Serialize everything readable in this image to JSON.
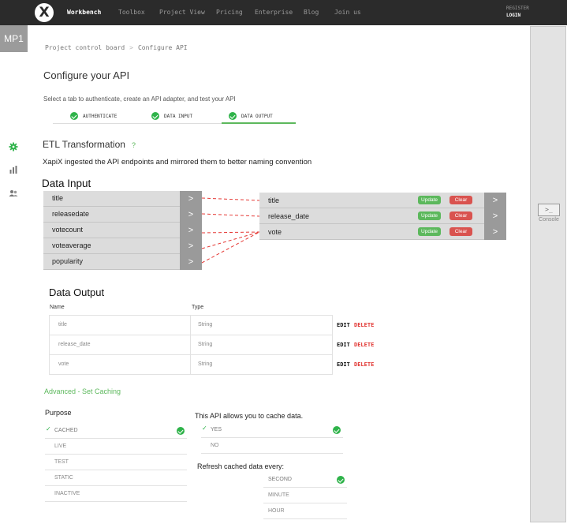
{
  "nav": {
    "logo": "X",
    "items": [
      "Workbench",
      "Toolbox",
      "Project View",
      "Pricing",
      "Enterprise",
      "Blog",
      "Join us"
    ],
    "register": "REGISTER",
    "login": "LOGIN"
  },
  "sidebar": {
    "project_badge": "MP1"
  },
  "breadcrumb": {
    "items": [
      "Project control board",
      "Configure API"
    ],
    "separator": ">"
  },
  "configure": {
    "title": "Configure your API",
    "subtitle": "Select a tab to authenticate, create an API adapter, and test your API",
    "tabs": [
      {
        "label": "AUTHENTICATE"
      },
      {
        "label": "DATA INPUT"
      },
      {
        "label": "DATA OUTPUT"
      }
    ]
  },
  "etl": {
    "title": "ETL Transformation",
    "help": "?",
    "description": "XapiX ingested the API endpoints and mirrored them to better naming convention"
  },
  "data_input": {
    "title": "Data Input",
    "inputs": [
      "title",
      "releasedate",
      "votecount",
      "voteaverage",
      "popularity"
    ],
    "outputs": [
      "title",
      "release_date",
      "vote"
    ],
    "update_label": "Update",
    "clear_label": "Clear",
    "arrow": ">"
  },
  "data_output": {
    "title": "Data Output",
    "columns": [
      "Name",
      "Type"
    ],
    "rows": [
      {
        "name": "title",
        "type": "String"
      },
      {
        "name": "release_date",
        "type": "String"
      },
      {
        "name": "vote",
        "type": "String"
      }
    ],
    "edit_label": "EDIT",
    "delete_label": "DELETE"
  },
  "caching": {
    "advanced_link": "Advanced - Set Caching",
    "purpose_label": "Purpose",
    "purpose_options": [
      "CACHED",
      "LIVE",
      "TEST",
      "STATIC",
      "INACTIVE"
    ],
    "cache_label": "This API allows you to cache data.",
    "cache_options": [
      "YES",
      "NO"
    ],
    "refresh_label": "Refresh cached data every:",
    "refresh_options": [
      "SECOND",
      "MINUTE",
      "HOUR"
    ]
  },
  "console": {
    "button": ">_",
    "label": "Console"
  },
  "colors": {
    "accent_green": "#5cb85c",
    "delete_red": "#e0332f",
    "topbar": "#2b2b2b"
  }
}
